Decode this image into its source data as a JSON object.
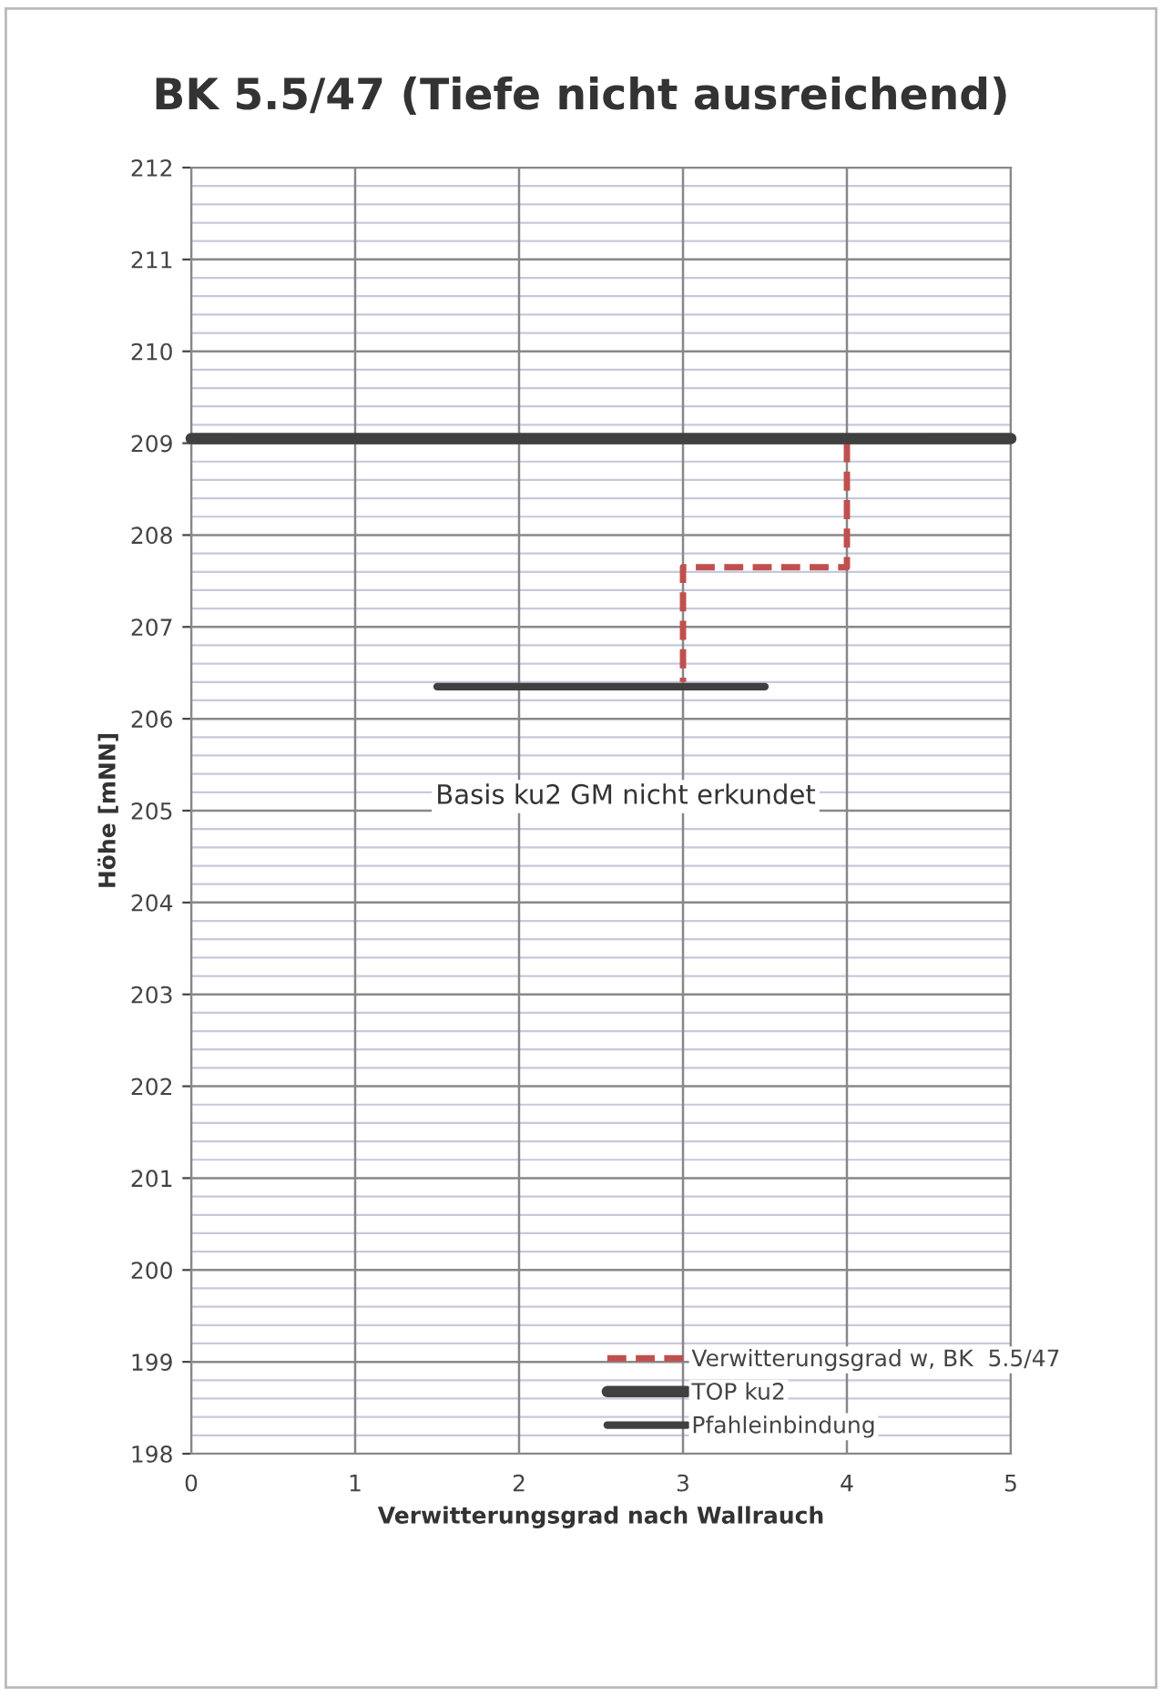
{
  "chart_data": {
    "type": "line",
    "title": "BK 5.5/47 (Tiefe nicht ausreichend)",
    "xlabel": "Verwitterungsgrad nach Wallrauch",
    "ylabel": "Höhe [mNN]",
    "series": [
      {
        "name": "Verwitterungsgrad w, BK  5.5/47",
        "color": "#c0504d",
        "line_style": "dashed",
        "x": [
          4,
          4,
          3,
          3
        ],
        "values": [
          209.0,
          207.65,
          207.65,
          206.4
        ]
      },
      {
        "name": "TOP ku2",
        "color": "#404040",
        "line_style": "solid",
        "x": [
          0,
          5
        ],
        "values": [
          209.05,
          209.05
        ]
      },
      {
        "name": "Pfahleinbindung",
        "color": "#404040",
        "line_style": "solid",
        "x": [
          1.5,
          3.5
        ],
        "values": [
          206.35,
          206.35
        ]
      }
    ],
    "annotations": [
      "Basis ku2 GM nicht erkundet"
    ],
    "xlim": [
      0,
      5
    ],
    "xticks": [
      0,
      1,
      2,
      3,
      4,
      5
    ],
    "ylim": [
      198,
      212
    ],
    "yticks": [
      198,
      199,
      200,
      201,
      202,
      203,
      204,
      205,
      206,
      207,
      208,
      209,
      210,
      211,
      212
    ],
    "grid": true,
    "legend": "bottom right",
    "marker": "none"
  }
}
